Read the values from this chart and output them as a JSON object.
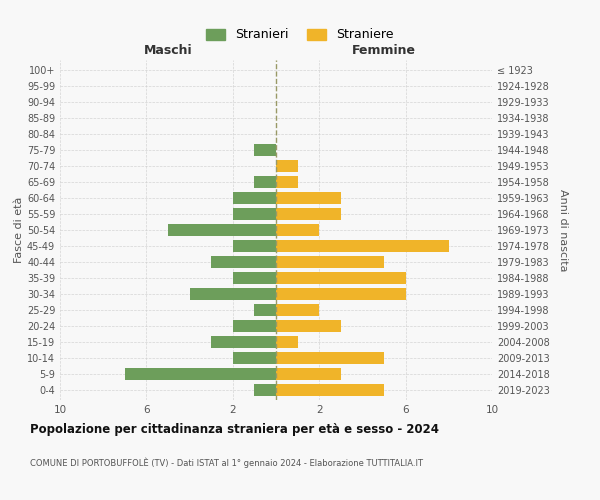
{
  "age_groups": [
    "0-4",
    "5-9",
    "10-14",
    "15-19",
    "20-24",
    "25-29",
    "30-34",
    "35-39",
    "40-44",
    "45-49",
    "50-54",
    "55-59",
    "60-64",
    "65-69",
    "70-74",
    "75-79",
    "80-84",
    "85-89",
    "90-94",
    "95-99",
    "100+"
  ],
  "birth_years": [
    "2019-2023",
    "2014-2018",
    "2009-2013",
    "2004-2008",
    "1999-2003",
    "1994-1998",
    "1989-1993",
    "1984-1988",
    "1979-1983",
    "1974-1978",
    "1969-1973",
    "1964-1968",
    "1959-1963",
    "1954-1958",
    "1949-1953",
    "1944-1948",
    "1939-1943",
    "1934-1938",
    "1929-1933",
    "1924-1928",
    "≤ 1923"
  ],
  "males": [
    1,
    7,
    2,
    3,
    2,
    1,
    4,
    2,
    3,
    2,
    5,
    2,
    2,
    1,
    0,
    1,
    0,
    0,
    0,
    0,
    0
  ],
  "females": [
    5,
    3,
    5,
    1,
    3,
    2,
    6,
    6,
    5,
    8,
    2,
    3,
    3,
    1,
    1,
    0,
    0,
    0,
    0,
    0,
    0
  ],
  "male_color": "#6d9e5b",
  "female_color": "#f0b429",
  "background_color": "#f8f8f8",
  "grid_color": "#cccccc",
  "title": "Popolazione per cittadinanza straniera per età e sesso - 2024",
  "subtitle": "COMUNE DI PORTOBUFFOLÈ (TV) - Dati ISTAT al 1° gennaio 2024 - Elaborazione TUTTITALIA.IT",
  "left_label": "Maschi",
  "right_label": "Femmine",
  "y_left_label": "Fasce di età",
  "y_right_label": "Anni di nascita",
  "legend_male": "Stranieri",
  "legend_female": "Straniere",
  "xlim": 10,
  "center_line_color": "#999966"
}
